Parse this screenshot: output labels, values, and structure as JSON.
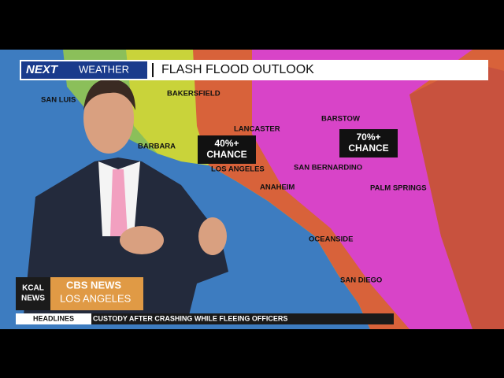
{
  "header": {
    "brand_next": "NEXT",
    "brand_weather": "WEATHER",
    "title": "FLASH FLOOD OUTLOOK"
  },
  "map": {
    "cities": [
      "SAN LUIS",
      "BAKERSFIELD",
      "LANCASTER",
      "BARSTOW",
      "BARBARA",
      "LOS ANGELES",
      "SAN BERNARDINO",
      "ANAHEIM",
      "PALM SPRINGS",
      "OCEANSIDE",
      "SAN DIEGO"
    ],
    "chances": [
      {
        "line1": "40%+",
        "line2": "CHANCE"
      },
      {
        "line1": "70%+",
        "line2": "CHANCE"
      }
    ]
  },
  "lower_third": {
    "kcal_1": "KCAL",
    "kcal_2": "NEWS",
    "cbs": "CBS NEWS",
    "city": "LOS ANGELES",
    "ticker_label": "HEADLINES",
    "ticker_text": "CUSTODY AFTER CRASHING WHILE FLEEING OFFICERS"
  }
}
